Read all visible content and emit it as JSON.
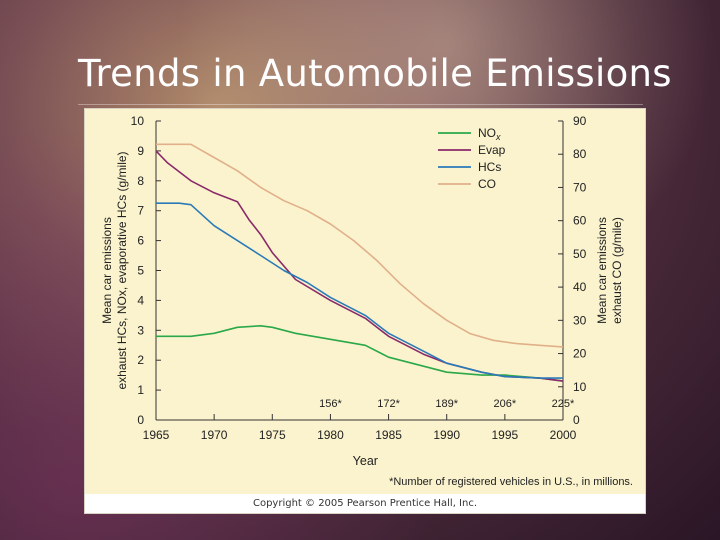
{
  "slide": {
    "title": "Trends in Automobile Emissions"
  },
  "footer": {
    "copyright": "Copyright © 2005 Pearson Prentice Hall, Inc."
  },
  "colors": {
    "NOx": "#2aa84a",
    "Evap": "#8a2a6a",
    "HCs": "#2a7ab8",
    "CO": "#e0b08a"
  },
  "chart_data": {
    "type": "line",
    "xlabel": "Year",
    "ylabel_left": "Mean car emissions exhaust HCs, NOx, evaporative HCs (g/mile)",
    "ylabel_left_line1": "Mean car emissions",
    "ylabel_left_line2": "exhaust HCs, NOx, evaporative HCs (g/mile)",
    "ylabel_right_line1": "Mean car emissions",
    "ylabel_right_line2": "exhaust CO (g/mile)",
    "xlim": [
      1965,
      2000
    ],
    "ylim_left": [
      0,
      10
    ],
    "ylim_right": [
      0,
      90
    ],
    "x_ticks": [
      1965,
      1970,
      1975,
      1980,
      1985,
      1990,
      1995,
      2000
    ],
    "y_ticks_left": [
      0,
      1,
      2,
      3,
      4,
      5,
      6,
      7,
      8,
      9,
      10
    ],
    "y_ticks_right": [
      0,
      10,
      20,
      30,
      40,
      50,
      60,
      70,
      80,
      90
    ],
    "legend_position": "top-right",
    "series": [
      {
        "name": "NOx",
        "label_main": "NO",
        "label_sub": "x",
        "axis": "left",
        "x": [
          1965,
          1968,
          1970,
          1972,
          1974,
          1975,
          1977,
          1980,
          1983,
          1985,
          1988,
          1990,
          1993,
          1995,
          1998,
          2000
        ],
        "y": [
          2.8,
          2.8,
          2.9,
          3.1,
          3.15,
          3.1,
          2.9,
          2.7,
          2.5,
          2.1,
          1.8,
          1.6,
          1.5,
          1.5,
          1.4,
          1.3
        ]
      },
      {
        "name": "Evap",
        "label_main": "Evap",
        "label_sub": "",
        "axis": "left",
        "x": [
          1965,
          1966,
          1968,
          1970,
          1972,
          1973,
          1974,
          1975,
          1977,
          1980,
          1983,
          1985,
          1988,
          1990,
          1993,
          1995,
          1998,
          2000
        ],
        "y": [
          9.0,
          8.6,
          8.0,
          7.6,
          7.3,
          6.7,
          6.2,
          5.6,
          4.7,
          4.0,
          3.4,
          2.8,
          2.2,
          1.9,
          1.6,
          1.45,
          1.4,
          1.3
        ]
      },
      {
        "name": "HCs",
        "label_main": "HCs",
        "label_sub": "",
        "axis": "left",
        "x": [
          1965,
          1967,
          1968,
          1970,
          1972,
          1974,
          1976,
          1978,
          1980,
          1983,
          1985,
          1988,
          1990,
          1993,
          1995,
          1998,
          2000
        ],
        "y": [
          7.25,
          7.25,
          7.2,
          6.5,
          6.0,
          5.5,
          5.0,
          4.6,
          4.1,
          3.5,
          2.9,
          2.3,
          1.9,
          1.6,
          1.45,
          1.4,
          1.4
        ]
      },
      {
        "name": "CO",
        "label_main": "CO",
        "label_sub": "",
        "axis": "right",
        "x": [
          1965,
          1968,
          1970,
          1972,
          1974,
          1976,
          1978,
          1980,
          1982,
          1984,
          1986,
          1988,
          1990,
          1992,
          1994,
          1996,
          1998,
          2000
        ],
        "y": [
          83,
          83,
          79,
          75,
          70,
          66,
          63,
          59,
          54,
          48,
          41,
          35,
          30,
          26,
          24,
          23,
          22.5,
          22
        ]
      }
    ],
    "annotations": [
      {
        "x": 1980,
        "text": "156*"
      },
      {
        "x": 1985,
        "text": "172*"
      },
      {
        "x": 1990,
        "text": "189*"
      },
      {
        "x": 1995,
        "text": "206*"
      },
      {
        "x": 2000,
        "text": "225*"
      }
    ],
    "note": "*Number of registered vehicles in U.S., in millions."
  }
}
